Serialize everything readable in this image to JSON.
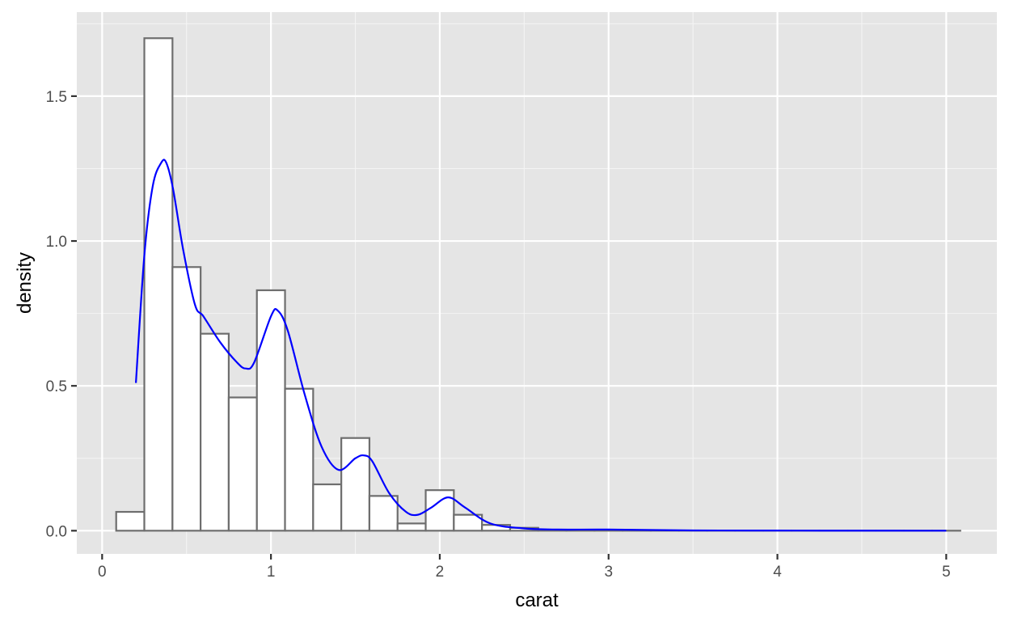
{
  "chart_data": {
    "type": "bar",
    "xlabel": "carat",
    "ylabel": "density",
    "xlim": [
      -0.15,
      5.3
    ],
    "ylim": [
      -0.08,
      1.79
    ],
    "x_ticks": [
      0,
      1,
      2,
      3,
      4,
      5
    ],
    "x_tick_labels": [
      "0",
      "1",
      "2",
      "3",
      "4",
      "5"
    ],
    "y_ticks": [
      0.0,
      0.5,
      1.0,
      1.5
    ],
    "y_tick_labels": [
      "0.0",
      "0.5",
      "1.0",
      "1.5"
    ],
    "grid": true,
    "histogram": {
      "bin_width": 0.1667,
      "bin_starts": [
        0.0833,
        0.25,
        0.4167,
        0.5833,
        0.75,
        0.9167,
        1.0833,
        1.25,
        1.4167,
        1.5833,
        1.75,
        1.9167,
        2.0833,
        2.25,
        2.4167,
        2.5833,
        2.75,
        2.9167,
        3.0833,
        3.25,
        3.4167,
        3.5833,
        3.75,
        3.9167,
        4.0833,
        4.25,
        4.4167,
        4.5833,
        4.75,
        4.9167
      ],
      "densities": [
        0.065,
        1.7,
        0.91,
        0.68,
        0.46,
        0.83,
        0.49,
        0.16,
        0.32,
        0.12,
        0.025,
        0.14,
        0.055,
        0.02,
        0.01,
        0.003,
        0.002,
        0.003,
        0.001,
        0.0005,
        0.0003,
        0.0002,
        0.0002,
        0.0001,
        0.0001,
        0.0001,
        0.0001,
        0.0001,
        0.0001,
        0.0001
      ],
      "fill_color": "#ffffff",
      "outline_color": "#6e6e6e"
    },
    "density_curve": {
      "color": "#0000ff",
      "x": [
        0.2,
        0.25,
        0.3,
        0.35,
        0.38,
        0.42,
        0.48,
        0.55,
        0.6,
        0.7,
        0.8,
        0.85,
        0.9,
        1.0,
        1.04,
        1.1,
        1.2,
        1.3,
        1.4,
        1.5,
        1.55,
        1.6,
        1.7,
        1.8,
        1.87,
        1.95,
        2.05,
        2.15,
        2.3,
        2.5,
        2.7,
        3.0,
        3.5,
        4.0,
        4.5,
        5.0
      ],
      "y": [
        0.51,
        0.95,
        1.19,
        1.27,
        1.27,
        1.18,
        0.97,
        0.78,
        0.74,
        0.65,
        0.58,
        0.56,
        0.58,
        0.74,
        0.76,
        0.69,
        0.47,
        0.29,
        0.21,
        0.25,
        0.26,
        0.24,
        0.13,
        0.065,
        0.055,
        0.08,
        0.115,
        0.08,
        0.025,
        0.008,
        0.004,
        0.004,
        0.001,
        0.0005,
        0.0002,
        0.0001
      ]
    }
  }
}
